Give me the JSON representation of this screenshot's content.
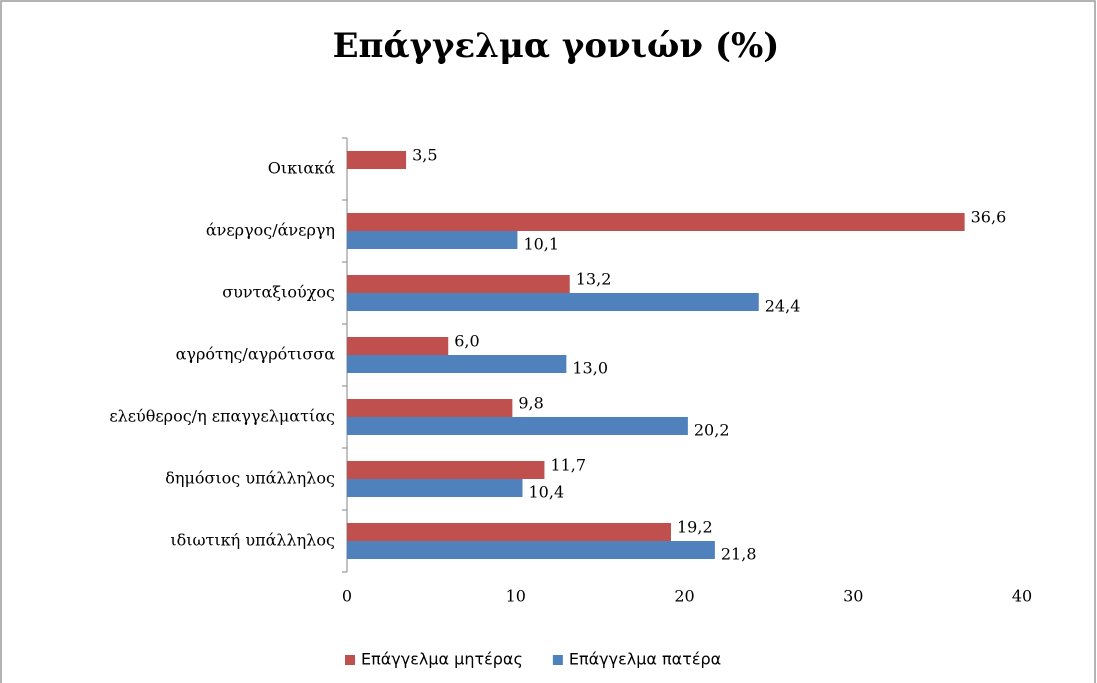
{
  "chart_data": {
    "type": "bar",
    "orientation": "horizontal",
    "title": "Επάγγελμα γονιών (%)",
    "categories": [
      "Οικιακά",
      "άνεργος/άνεργη",
      "συνταξιούχος",
      "αγρότης/αγρότισσα",
      "ελεύθερος/η επαγγελματίας",
      "δημόσιος υπάλληλος",
      "ιδιωτική υπάλληλος"
    ],
    "series": [
      {
        "name": "Επάγγελμα μητέρας",
        "color": "#c0504d",
        "values": [
          3.5,
          36.6,
          13.2,
          6.0,
          9.8,
          11.7,
          19.2
        ],
        "value_labels": [
          "3,5",
          "36,6",
          "13,2",
          "6,0",
          "9,8",
          "11,7",
          "19,2"
        ]
      },
      {
        "name": "Επάγγελμα πατέρα",
        "color": "#4f81bd",
        "values": [
          null,
          10.1,
          24.4,
          13.0,
          20.2,
          10.4,
          21.8
        ],
        "value_labels": [
          null,
          "10,1",
          "24,4",
          "13,0",
          "20,2",
          "10,4",
          "21,8"
        ]
      }
    ],
    "xlim": [
      0,
      40
    ],
    "xticks": [
      0,
      10,
      20,
      30,
      40
    ],
    "grid": false,
    "legend": "bottom"
  }
}
